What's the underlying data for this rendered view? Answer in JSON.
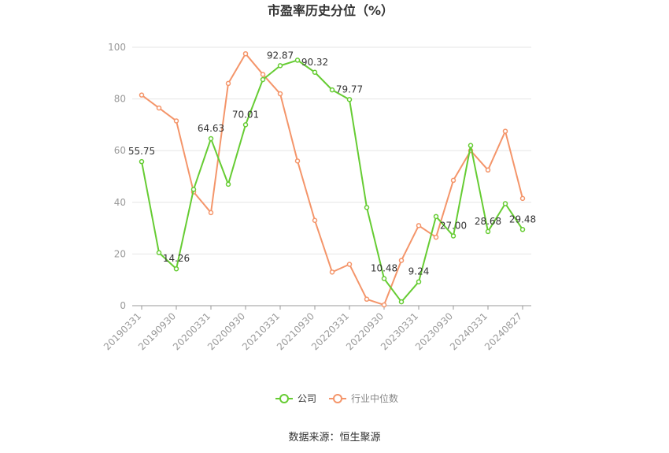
{
  "chart_data": {
    "type": "line",
    "title": "市盈率历史分位（%）",
    "x_tick_labels": [
      "20190331",
      "20190930",
      "20200331",
      "20200930",
      "20210331",
      "20210930",
      "20220331",
      "20220930",
      "20230331",
      "20230930",
      "20240331",
      "20240827"
    ],
    "ylim": [
      0,
      100
    ],
    "y_ticks": [
      0,
      20,
      40,
      60,
      80,
      100
    ],
    "grid": true,
    "legend_position": "bottom",
    "series": [
      {
        "name": "公司",
        "color": "#66cc33",
        "values": [
          55.75,
          20.5,
          14.26,
          45.0,
          64.63,
          47.0,
          70.01,
          87.5,
          92.87,
          95.0,
          90.32,
          83.5,
          79.77,
          38.0,
          10.48,
          1.5,
          9.24,
          34.5,
          27.0,
          62.0,
          28.68,
          39.5,
          29.48
        ],
        "data_labels": [
          "55.75",
          "",
          "14.26",
          "",
          "64.63",
          "",
          "70.01",
          "",
          "92.87",
          "",
          "90.32",
          "",
          "79.77",
          "",
          "10.48",
          "",
          "9.24",
          "",
          "27.00",
          "",
          "28.68",
          "",
          "29.48"
        ]
      },
      {
        "name": "行业中位数",
        "color": "#f4956a",
        "values": [
          81.5,
          76.5,
          71.5,
          44.0,
          36.0,
          86.0,
          97.5,
          89.5,
          82.0,
          56.0,
          33.0,
          13.0,
          16.0,
          2.5,
          0.3,
          17.5,
          31.0,
          26.5,
          48.5,
          60.0,
          52.5,
          67.5,
          41.5
        ]
      }
    ]
  },
  "source_text": "数据来源：恒生聚源"
}
